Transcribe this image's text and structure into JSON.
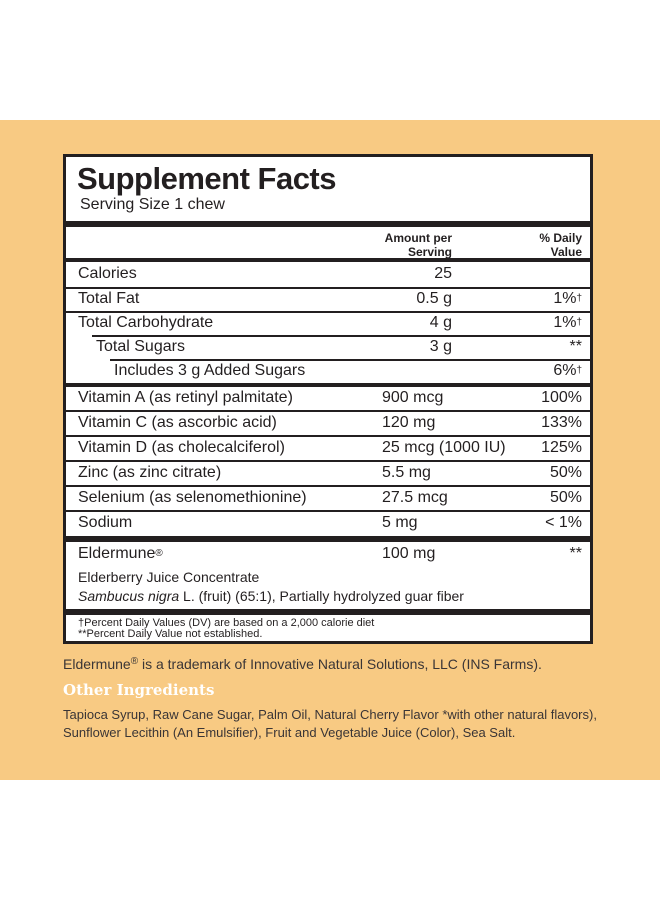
{
  "facts": {
    "title": "Supplement Facts",
    "serving": "Serving Size 1 chew",
    "col_amount_1": "Amount per",
    "col_amount_2": "Serving",
    "col_dv_1": "% Daily",
    "col_dv_2": "Value",
    "rows": [
      {
        "name": "Calories",
        "amount": "25",
        "dv": ""
      },
      {
        "name": "Total Fat",
        "amount": "0.5 g",
        "dv": "1%",
        "dv_mark": "†"
      },
      {
        "name": "Total Carbohydrate",
        "amount": "4 g",
        "dv": "1%",
        "dv_mark": "†"
      },
      {
        "name": "Total Sugars",
        "amount": "3 g",
        "dv": "**"
      },
      {
        "name": "Includes 3 g Added Sugars",
        "amount": "",
        "dv": "6%",
        "dv_mark": "†"
      },
      {
        "name": "Vitamin A (as retinyl palmitate)",
        "amount": "900 mcg",
        "dv": "100%"
      },
      {
        "name": "Vitamin C (as ascorbic acid)",
        "amount": "120 mg",
        "dv": "133%"
      },
      {
        "name": "Vitamin D (as cholecalciferol)",
        "amount": "25 mcg (1000 IU)",
        "dv": "125%"
      },
      {
        "name": "Zinc (as zinc citrate)",
        "amount": "5.5 mg",
        "dv": "50%"
      },
      {
        "name": "Selenium (as selenomethionine)",
        "amount": "27.5 mcg",
        "dv": "50%"
      },
      {
        "name": "Sodium",
        "amount": "5 mg",
        "dv": "< 1%"
      }
    ],
    "eldermune": {
      "name": "Eldermune",
      "mark": "®",
      "amount": "100 mg",
      "dv": "**",
      "line1": "Elderberry Juice Concentrate",
      "line2_italic": "Sambucus nigra",
      "line2_rest": " L. (fruit) (65:1), Partially hydrolyzed guar fiber"
    },
    "footnote_1": "†Percent Daily Values (DV) are based on a 2,000 calorie diet",
    "footnote_2": "**Percent Daily Value not established."
  },
  "trademark": {
    "name": "Eldermune",
    "mark": "®",
    "rest": " is a trademark of Innovative Natural Solutions, LLC (INS Farms)."
  },
  "other_ingredients": {
    "title": "Other Ingredients",
    "text": "Tapioca Syrup, Raw Cane Sugar, Palm Oil, Natural Cherry Flavor *with other natural flavors), Sunflower Lecithin (An Emulsifier), Fruit and Vegetable Juice (Color), Sea Salt."
  },
  "colors": {
    "band": "#f8ca83",
    "ink": "#231f20",
    "heading_white": "#ffffff"
  }
}
